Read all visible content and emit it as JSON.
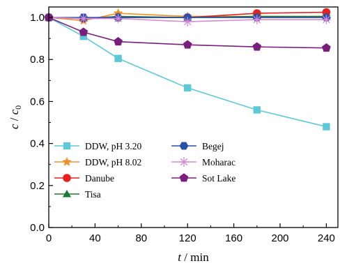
{
  "chart_data": {
    "type": "line",
    "xlabel": {
      "var": "t",
      "sep": " / ",
      "unit": "min"
    },
    "ylabel": {
      "var": "c",
      "sep": " / ",
      "var2": "c",
      "sub": "0"
    },
    "xlim": [
      0,
      250
    ],
    "ylim": [
      0,
      1.05
    ],
    "x_ticks": [
      0,
      40,
      80,
      120,
      160,
      200,
      240
    ],
    "y_ticks": [
      0.0,
      0.2,
      0.4,
      0.6,
      0.8,
      1.0
    ],
    "x_tick_labels": [
      "0",
      "40",
      "80",
      "120",
      "160",
      "200",
      "240"
    ],
    "y_tick_labels": [
      "0.0",
      "0.2",
      "0.4",
      "0.6",
      "0.8",
      "1.0"
    ],
    "grid": false,
    "legend_position": "bottom-left",
    "series": [
      {
        "name": "DDW, pH 3.20",
        "color": "#5ec8d8",
        "marker": "square",
        "x": [
          0,
          30,
          60,
          120,
          180,
          240
        ],
        "y": [
          1.0,
          0.91,
          0.805,
          0.665,
          0.56,
          0.48
        ]
      },
      {
        "name": "DDW, pH 8.02",
        "color": "#f0902c",
        "marker": "star",
        "x": [
          0,
          30,
          60,
          120,
          180,
          240
        ],
        "y": [
          1.0,
          0.985,
          1.02,
          1.005,
          1.005,
          1.005
        ]
      },
      {
        "name": "Danube",
        "color": "#e8201e",
        "marker": "circle",
        "x": [
          0,
          30,
          60,
          120,
          180,
          240
        ],
        "y": [
          1.0,
          0.995,
          1.0,
          1.0,
          1.02,
          1.025
        ]
      },
      {
        "name": "Tisa",
        "color": "#1e7a2e",
        "marker": "triangle",
        "x": [
          0,
          30,
          60,
          120,
          180,
          240
        ],
        "y": [
          1.0,
          0.995,
          1.005,
          1.0,
          1.005,
          1.005
        ]
      },
      {
        "name": "Begej",
        "color": "#2a4fa8",
        "marker": "hexagon",
        "x": [
          0,
          30,
          60,
          120,
          180,
          240
        ],
        "y": [
          1.0,
          1.0,
          1.0,
          1.0,
          1.0,
          1.0
        ]
      },
      {
        "name": "Moharac",
        "color": "#d68ad6",
        "marker": "asterisk",
        "x": [
          0,
          30,
          60,
          120,
          180,
          240
        ],
        "y": [
          1.0,
          0.995,
          0.995,
          0.98,
          0.99,
          0.99
        ]
      },
      {
        "name": "Sot Lake",
        "color": "#7a1e7e",
        "marker": "pentagon",
        "x": [
          0,
          30,
          60,
          120,
          180,
          240
        ],
        "y": [
          1.0,
          0.93,
          0.885,
          0.87,
          0.86,
          0.855
        ]
      }
    ]
  }
}
